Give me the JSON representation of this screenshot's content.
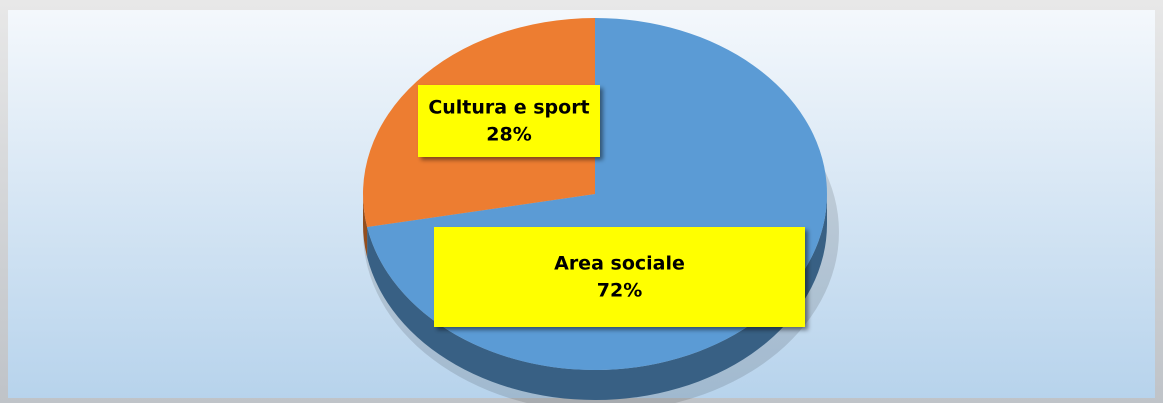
{
  "chart_data": {
    "type": "pie",
    "categories": [
      "Area sociale",
      "Cultura e sport"
    ],
    "values": [
      72,
      28
    ],
    "value_labels": [
      "72%",
      "28%"
    ],
    "colors": [
      "#5b9bd5",
      "#ed7d31"
    ],
    "label_background": "#ffff00"
  }
}
